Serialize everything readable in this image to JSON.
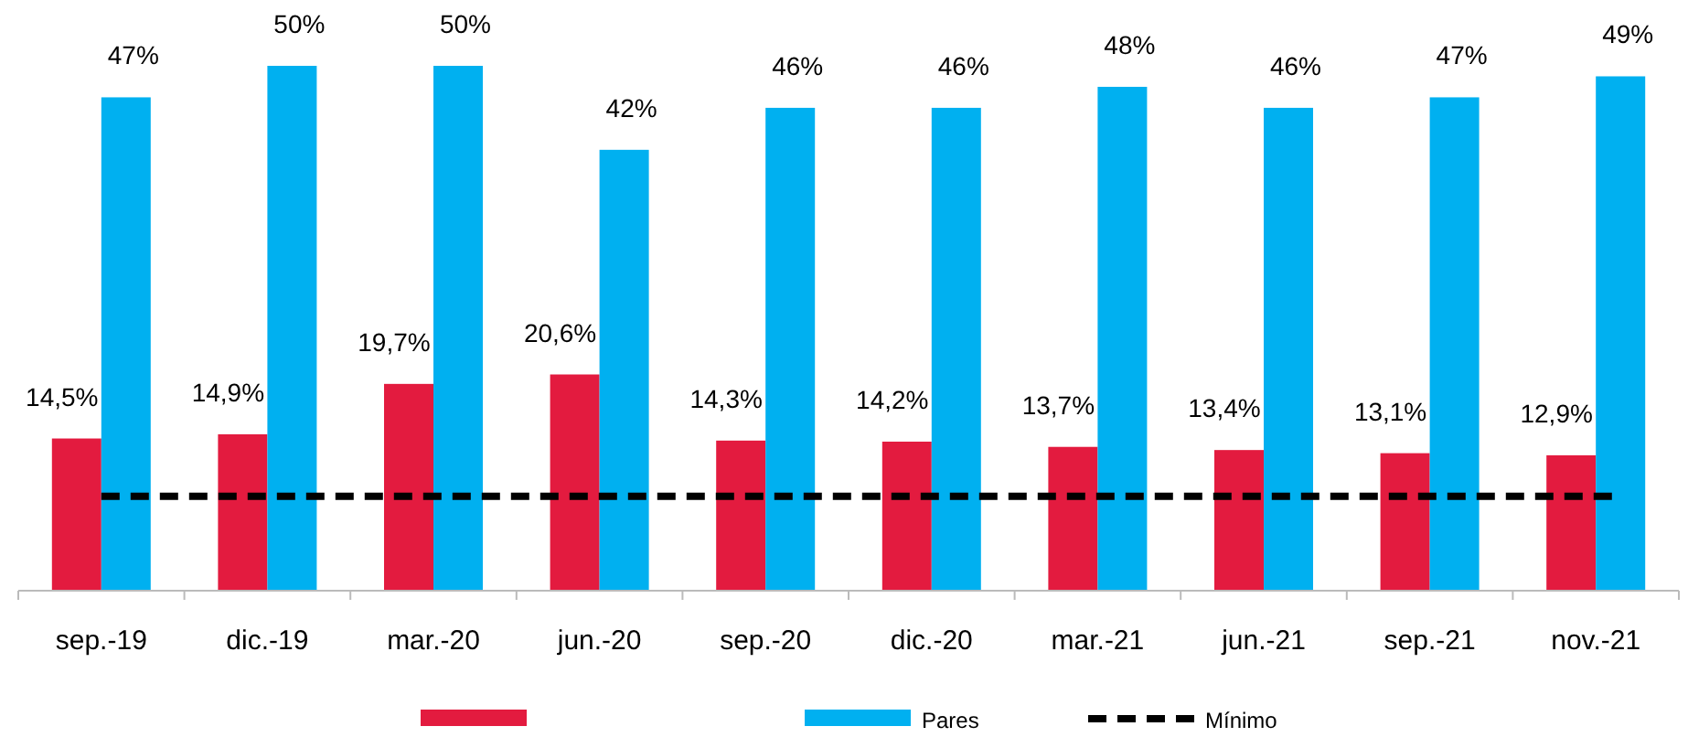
{
  "chart_data": {
    "type": "bar",
    "categories": [
      "sep.-19",
      "dic.-19",
      "mar.-20",
      "jun.-20",
      "sep.-20",
      "dic.-20",
      "mar.-21",
      "jun.-21",
      "sep.-21",
      "nov.-21"
    ],
    "series": [
      {
        "color": "#e31b3f",
        "values": [
          14.5,
          14.9,
          19.7,
          20.6,
          14.3,
          14.2,
          13.7,
          13.4,
          13.1,
          12.9
        ],
        "value_labels": [
          "14,5%",
          "14,9%",
          "19,7%",
          "20,6%",
          "14,3%",
          "14,2%",
          "13,7%",
          "13,4%",
          "13,1%",
          "12,9%"
        ]
      },
      {
        "name": "Pares",
        "color": "#00b0f0",
        "values": [
          47,
          50,
          50,
          42,
          46,
          46,
          48,
          46,
          47,
          49
        ],
        "value_labels": [
          "47%",
          "50%",
          "50%",
          "42%",
          "46%",
          "46%",
          "48%",
          "46%",
          "47%",
          "49%"
        ]
      }
    ],
    "ref_lines": [
      {
        "axis": "y",
        "value": 9,
        "label": "Mínimo",
        "color": "#000000",
        "line_style": "dashed"
      }
    ],
    "legend": "bottom",
    "grid": false
  }
}
